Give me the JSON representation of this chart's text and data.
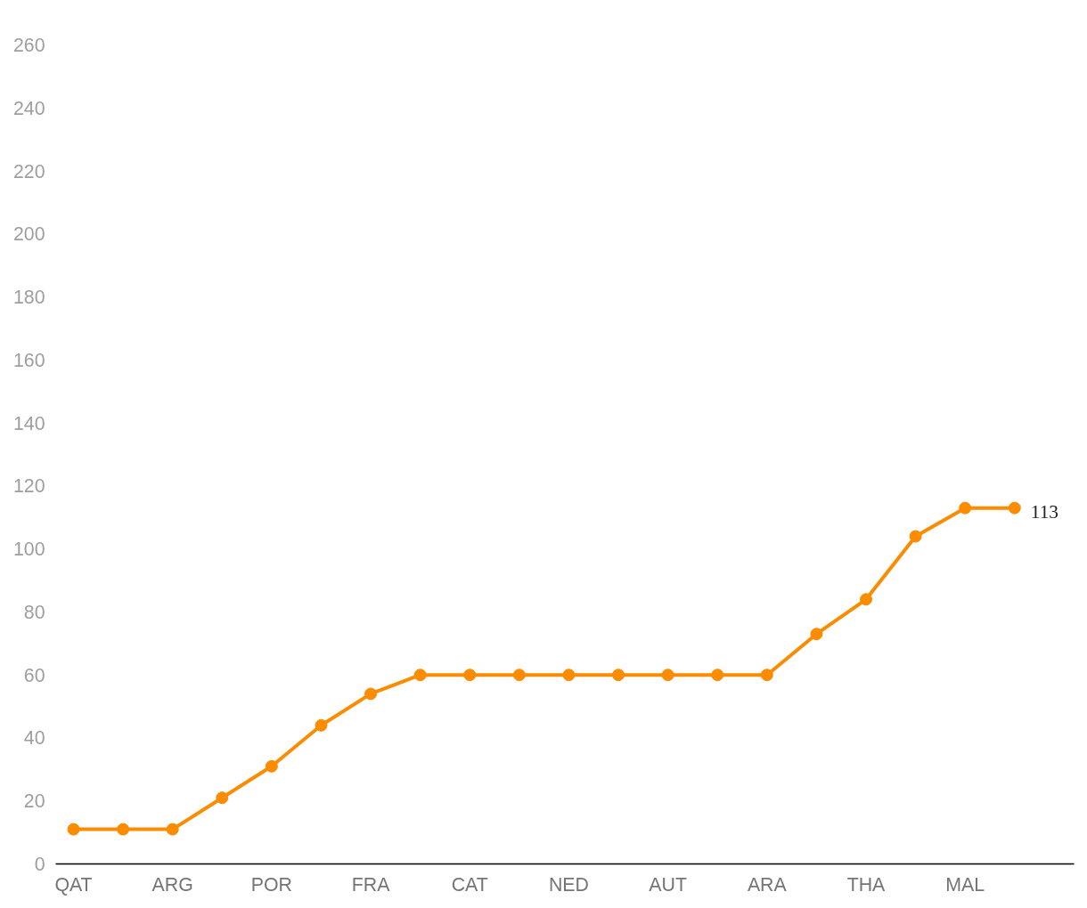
{
  "chart_data": {
    "type": "line",
    "categories": [
      "QAT",
      null,
      "ARG",
      null,
      "POR",
      null,
      "FRA",
      null,
      "CAT",
      null,
      "NED",
      null,
      "AUT",
      null,
      "ARA",
      null,
      "THA",
      null,
      "MAL",
      null
    ],
    "series": [
      {
        "color": "#fb8c00",
        "values": [
          11,
          11,
          11,
          21,
          31,
          44,
          54,
          60,
          60,
          60,
          60,
          60,
          60,
          60,
          60,
          73,
          84,
          104,
          113,
          113
        ],
        "value_labels": [
          null,
          null,
          null,
          null,
          null,
          null,
          null,
          null,
          null,
          null,
          null,
          null,
          null,
          null,
          null,
          null,
          null,
          null,
          null,
          "113"
        ]
      }
    ],
    "ylim": [
      0,
      260
    ],
    "yticks": [
      0,
      20,
      40,
      60,
      80,
      100,
      120,
      140,
      160,
      180,
      200,
      220,
      240,
      260
    ],
    "grid": false,
    "marker": "circle",
    "line_style": "solid"
  }
}
